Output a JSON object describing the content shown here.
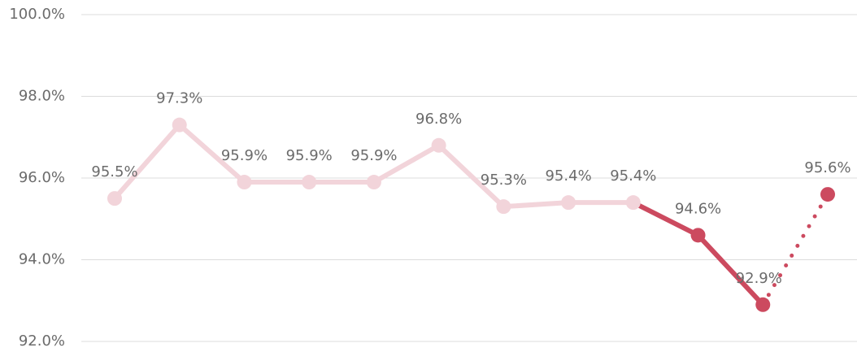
{
  "chart_data": {
    "type": "line",
    "values": [
      95.5,
      97.3,
      95.9,
      95.9,
      95.9,
      96.8,
      95.3,
      95.4,
      95.4,
      94.6,
      92.9,
      95.6
    ],
    "value_labels": [
      "95.5%",
      "97.3%",
      "95.9%",
      "95.9%",
      "95.9%",
      "96.8%",
      "95.3%",
      "95.4%",
      "95.4%",
      "94.6%",
      "92.9%",
      "95.6%"
    ],
    "color": "#f2d4da",
    "highlight": {
      "color": "#cc4a5f",
      "from_index": 8
    },
    "forecast": {
      "from_index": 10,
      "style": "dotted"
    },
    "ylim": [
      92,
      100
    ],
    "yticks": [
      {
        "value": 92,
        "label": "92.0%"
      },
      {
        "value": 94,
        "label": "94.0%"
      },
      {
        "value": 96,
        "label": "96.0%"
      },
      {
        "value": 98,
        "label": "98.0%"
      },
      {
        "value": 100,
        "label": "100.0%"
      }
    ],
    "grid": true
  }
}
